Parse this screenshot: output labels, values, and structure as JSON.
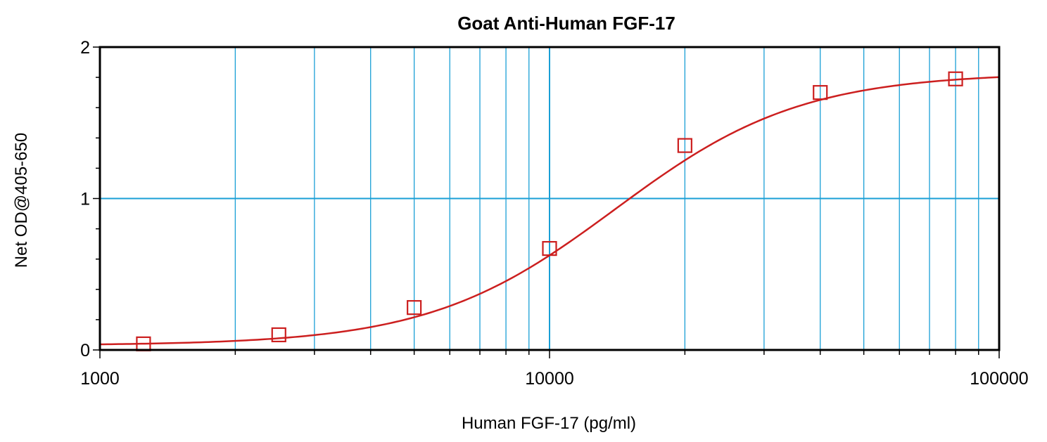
{
  "chart_data": {
    "type": "scatter",
    "title": "Goat Anti-Human FGF-17",
    "xlabel": "Human FGF-17 (pg/ml)",
    "ylabel": "Net OD@405-650",
    "xscale": "log",
    "xlim": [
      1000,
      100000
    ],
    "ylim": [
      0,
      2
    ],
    "x_ticks": [
      {
        "value": 1000,
        "label": "1000"
      },
      {
        "value": 10000,
        "label": "10000"
      },
      {
        "value": 100000,
        "label": "100000"
      }
    ],
    "y_ticks": [
      {
        "value": 0,
        "label": "0"
      },
      {
        "value": 1,
        "label": "1"
      },
      {
        "value": 2,
        "label": "2"
      }
    ],
    "grid": true,
    "legend": "none",
    "points": {
      "x": [
        1250,
        2500,
        5000,
        10000,
        20000,
        40000,
        80000
      ],
      "y": [
        0.04,
        0.1,
        0.28,
        0.67,
        1.35,
        1.7,
        1.79
      ]
    },
    "fit_curve": {
      "model": "4PL",
      "bottom": 0.03,
      "top": 1.83,
      "ec50": 14000,
      "hill": 2.1
    },
    "colors": {
      "grid": "#1a9fd6",
      "series": "#cc1f1f",
      "axis": "#000000"
    }
  }
}
